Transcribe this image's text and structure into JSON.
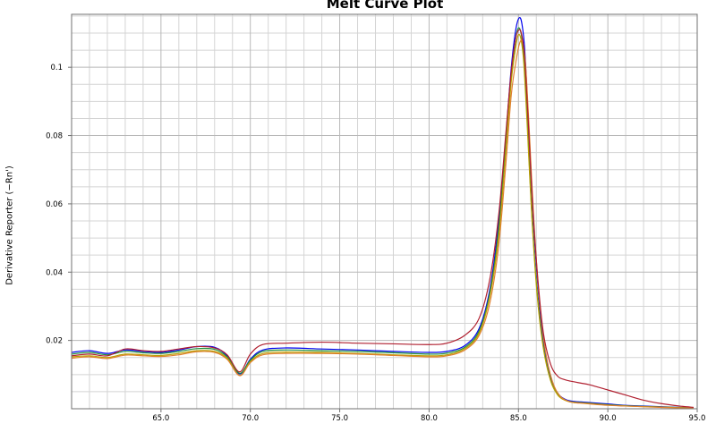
{
  "chart_data": {
    "type": "line",
    "title": "Melt Curve Plot",
    "xlabel": "",
    "ylabel": "Derivative Reporter (−Rn')",
    "xlim": [
      60.0,
      95.0
    ],
    "ylim": [
      0.0,
      0.1155
    ],
    "x_ticks": [
      "65.0",
      "70.0",
      "75.0",
      "80.0",
      "85.0",
      "90.0",
      "95.0"
    ],
    "y_ticks": [
      "0.02",
      "0.04",
      "0.06",
      "0.08",
      "0.1"
    ],
    "grid": true,
    "series": [
      {
        "color": "#0000ee",
        "x": [
          60.0,
          61.0,
          62.0,
          63.0,
          64.0,
          65.0,
          66.0,
          67.0,
          68.0,
          68.7,
          69.4,
          70.0,
          70.7,
          72.0,
          74.0,
          76.0,
          78.0,
          80.0,
          81.0,
          82.0,
          82.8,
          83.4,
          83.9,
          84.3,
          84.6,
          84.85,
          85.05,
          85.2,
          85.35,
          85.55,
          85.8,
          86.1,
          86.4,
          86.8,
          87.2,
          87.6,
          88.0,
          88.5,
          89.0,
          90.0,
          91.0,
          92.0,
          93.0,
          94.0,
          94.8
        ],
        "y": [
          0.0165,
          0.017,
          0.0162,
          0.0172,
          0.0168,
          0.0165,
          0.0172,
          0.0182,
          0.018,
          0.0155,
          0.0102,
          0.0145,
          0.0172,
          0.0178,
          0.0175,
          0.0172,
          0.0168,
          0.0165,
          0.0168,
          0.0185,
          0.0235,
          0.035,
          0.055,
          0.08,
          0.1,
          0.111,
          0.1145,
          0.1125,
          0.105,
          0.085,
          0.058,
          0.035,
          0.019,
          0.009,
          0.0045,
          0.0028,
          0.0022,
          0.002,
          0.0018,
          0.0014,
          0.001,
          0.0008,
          0.0006,
          0.0004,
          0.0003
        ]
      },
      {
        "color": "#1f8f3f",
        "x": [
          60.0,
          61.0,
          62.0,
          63.0,
          64.0,
          65.0,
          66.0,
          67.0,
          68.0,
          68.7,
          69.4,
          70.0,
          70.7,
          72.0,
          74.0,
          76.0,
          78.0,
          80.0,
          81.0,
          82.0,
          82.8,
          83.4,
          83.9,
          84.3,
          84.6,
          84.85,
          85.0,
          85.15,
          85.3,
          85.5,
          85.75,
          86.05,
          86.4,
          86.8,
          87.2,
          87.6,
          88.0,
          88.5,
          89.0,
          90.0,
          91.0,
          92.0,
          93.0,
          94.0,
          94.8
        ],
        "y": [
          0.016,
          0.0165,
          0.0158,
          0.0168,
          0.0164,
          0.0162,
          0.0168,
          0.0176,
          0.0174,
          0.0152,
          0.0104,
          0.0142,
          0.0168,
          0.0172,
          0.017,
          0.0168,
          0.0164,
          0.016,
          0.0163,
          0.018,
          0.0228,
          0.034,
          0.053,
          0.078,
          0.098,
          0.1085,
          0.1115,
          0.1098,
          0.103,
          0.084,
          0.057,
          0.034,
          0.018,
          0.0085,
          0.0042,
          0.0026,
          0.002,
          0.0018,
          0.0016,
          0.0012,
          0.0009,
          0.0007,
          0.0005,
          0.0004,
          0.0003
        ]
      },
      {
        "color": "#b8a000",
        "x": [
          60.0,
          61.0,
          62.0,
          63.0,
          64.0,
          65.0,
          66.0,
          67.0,
          68.0,
          68.7,
          69.4,
          70.0,
          70.7,
          72.0,
          74.0,
          76.0,
          78.0,
          80.0,
          81.0,
          82.0,
          82.8,
          83.4,
          83.9,
          84.3,
          84.6,
          84.85,
          85.0,
          85.15,
          85.3,
          85.5,
          85.75,
          86.05,
          86.4,
          86.8,
          87.2,
          87.6,
          88.0,
          88.5,
          89.0,
          90.0,
          91.0,
          92.0,
          93.0,
          94.0,
          94.8
        ],
        "y": [
          0.0152,
          0.0155,
          0.015,
          0.016,
          0.0158,
          0.0156,
          0.0162,
          0.017,
          0.0168,
          0.0148,
          0.0098,
          0.0138,
          0.0162,
          0.0166,
          0.0165,
          0.0162,
          0.0158,
          0.0155,
          0.0158,
          0.0176,
          0.0222,
          0.033,
          0.051,
          0.076,
          0.096,
          0.106,
          0.1095,
          0.108,
          0.101,
          0.082,
          0.056,
          0.033,
          0.0175,
          0.0082,
          0.004,
          0.0025,
          0.0019,
          0.0017,
          0.0015,
          0.0011,
          0.0008,
          0.0006,
          0.0005,
          0.0003,
          0.0002
        ]
      },
      {
        "color": "#e08030",
        "x": [
          60.0,
          61.0,
          62.0,
          63.0,
          64.0,
          65.0,
          66.0,
          67.0,
          68.0,
          68.7,
          69.4,
          70.0,
          70.7,
          72.0,
          74.0,
          76.0,
          78.0,
          80.0,
          81.0,
          82.0,
          82.8,
          83.4,
          83.9,
          84.3,
          84.6,
          84.9,
          85.1,
          85.25,
          85.4,
          85.6,
          85.85,
          86.15,
          86.5,
          86.9,
          87.3,
          87.7,
          88.1,
          88.6,
          89.0,
          90.0,
          91.0,
          92.0,
          93.0,
          94.0,
          94.8
        ],
        "y": [
          0.0148,
          0.0152,
          0.0147,
          0.0157,
          0.0155,
          0.0153,
          0.0158,
          0.0167,
          0.0165,
          0.0145,
          0.0097,
          0.0135,
          0.0158,
          0.0162,
          0.0162,
          0.016,
          0.0156,
          0.0152,
          0.0155,
          0.0172,
          0.0215,
          0.031,
          0.048,
          0.072,
          0.092,
          0.103,
          0.1075,
          0.107,
          0.1005,
          0.082,
          0.056,
          0.033,
          0.0172,
          0.008,
          0.0039,
          0.0024,
          0.0018,
          0.0016,
          0.0014,
          0.001,
          0.0008,
          0.0006,
          0.0004,
          0.0003,
          0.0002
        ]
      },
      {
        "color": "#b02030",
        "x": [
          60.0,
          61.0,
          62.0,
          63.0,
          64.0,
          65.0,
          66.0,
          67.0,
          68.0,
          68.7,
          69.4,
          70.0,
          70.7,
          72.0,
          74.0,
          76.0,
          78.0,
          80.0,
          81.0,
          82.0,
          82.8,
          83.4,
          83.9,
          84.3,
          84.6,
          84.85,
          85.05,
          85.2,
          85.35,
          85.55,
          85.8,
          86.1,
          86.4,
          86.8,
          87.2,
          87.6,
          88.0,
          88.5,
          89.0,
          90.0,
          91.0,
          92.0,
          93.0,
          94.0,
          94.8
        ],
        "y": [
          0.0155,
          0.016,
          0.0155,
          0.0175,
          0.017,
          0.0168,
          0.0175,
          0.0182,
          0.0178,
          0.0158,
          0.0108,
          0.016,
          0.0188,
          0.0192,
          0.0195,
          0.0192,
          0.019,
          0.0188,
          0.0192,
          0.0215,
          0.0265,
          0.038,
          0.057,
          0.081,
          0.099,
          0.1085,
          0.111,
          0.109,
          0.1025,
          0.084,
          0.059,
          0.037,
          0.022,
          0.013,
          0.0095,
          0.0085,
          0.008,
          0.0075,
          0.007,
          0.0055,
          0.004,
          0.0025,
          0.0015,
          0.0008,
          0.0004
        ]
      }
    ]
  }
}
